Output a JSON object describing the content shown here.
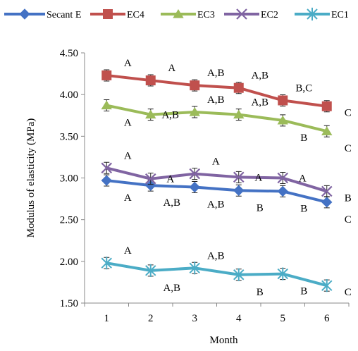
{
  "chart_data": {
    "type": "line",
    "title": "",
    "xlabel": "Month",
    "ylabel": "Modulus of elasticity (MPa)",
    "x": [
      1,
      2,
      3,
      4,
      5,
      6
    ],
    "xtick_labels": [
      "1",
      "2",
      "3",
      "4",
      "5",
      "6"
    ],
    "ylim": [
      1.5,
      4.5
    ],
    "yticks": [
      1.5,
      2.0,
      2.5,
      3.0,
      3.5,
      4.0,
      4.5
    ],
    "ytick_labels": [
      "1.50",
      "2.00",
      "2.50",
      "3.00",
      "3.50",
      "4.00",
      "4.50"
    ],
    "grid": false,
    "legend_position": "top",
    "series": [
      {
        "name": "Secant E",
        "marker": "diamond",
        "color": "#4472C4",
        "values": [
          2.97,
          2.91,
          2.89,
          2.85,
          2.84,
          2.71
        ],
        "labels": [
          "A",
          "A,B",
          "A,B",
          "B",
          "B",
          "C"
        ],
        "label_position": [
          "below",
          "below",
          "below",
          "below",
          "below",
          "below"
        ]
      },
      {
        "name": "EC4",
        "marker": "square",
        "color": "#C0504D",
        "values": [
          4.23,
          4.17,
          4.11,
          4.08,
          3.93,
          3.86
        ],
        "labels": [
          "A",
          "A",
          "A,B",
          "A,B",
          "B,C",
          "C"
        ],
        "label_position": [
          "above",
          "above",
          "above",
          "above",
          "above",
          "right"
        ]
      },
      {
        "name": "EC3",
        "marker": "triangle",
        "color": "#9BBB59",
        "values": [
          3.87,
          3.76,
          3.79,
          3.76,
          3.69,
          3.56
        ],
        "labels": [
          "A",
          "A,B",
          "A,B",
          "A,B",
          "B",
          "C"
        ],
        "label_position": [
          "below",
          "right",
          "above",
          "above",
          "below",
          "below"
        ]
      },
      {
        "name": "EC2",
        "marker": "x",
        "color": "#8064A2",
        "values": [
          3.12,
          2.99,
          3.05,
          3.01,
          3.0,
          2.84
        ],
        "labels": [
          "A",
          "A",
          "A",
          "A",
          "A",
          "B"
        ],
        "label_position": [
          "above",
          "right",
          "above",
          "right",
          "right",
          "right"
        ]
      },
      {
        "name": "EC1",
        "marker": "star",
        "color": "#4BACC6",
        "values": [
          1.98,
          1.89,
          1.92,
          1.84,
          1.85,
          1.71
        ],
        "labels": [
          "A",
          "A,B",
          "A,B",
          "B",
          "B",
          "C"
        ],
        "label_position": [
          "above",
          "below",
          "above",
          "below",
          "below",
          "right"
        ]
      }
    ]
  }
}
